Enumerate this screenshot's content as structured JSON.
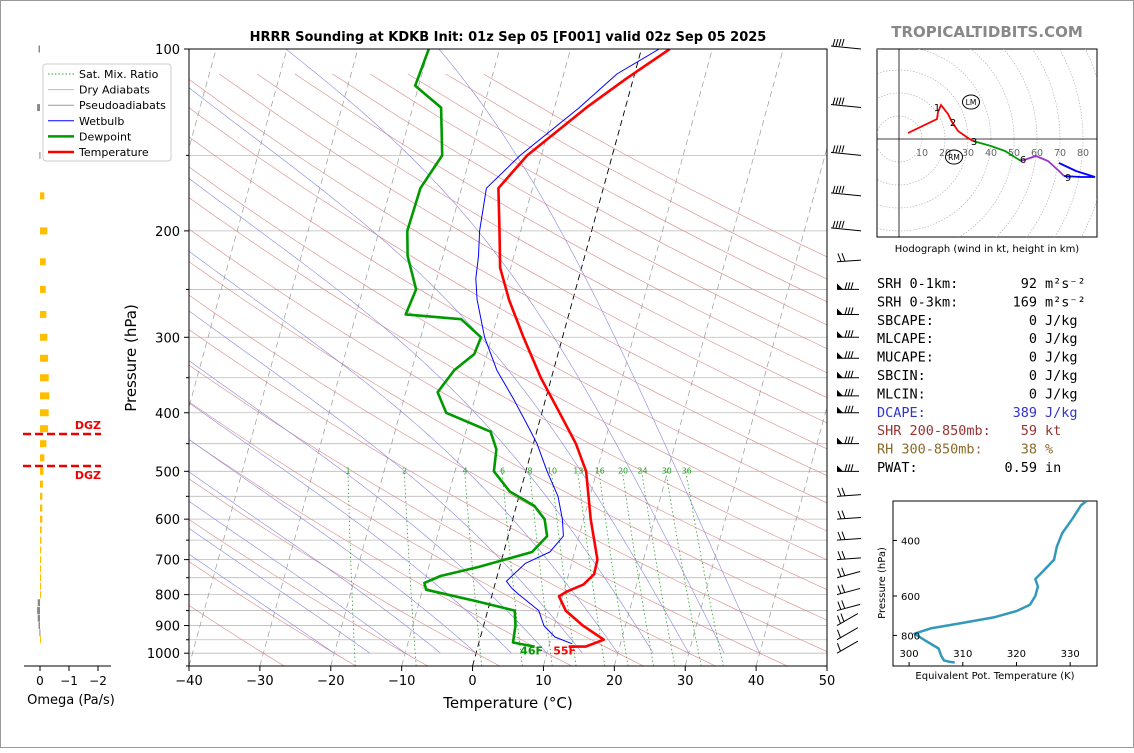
{
  "site": "TROPICALTIDBITS.COM",
  "chart_data": [
    {
      "type": "line",
      "id": "skewt",
      "title": "HRRR Sounding at KDKB Init: 01z Sep 05 [F001] valid 02z Sep 05 2025",
      "xlabel": "Temperature (°C)",
      "ylabel": "Pressure (hPa)",
      "xlim": [
        -40,
        50
      ],
      "ylim": [
        1050,
        100
      ],
      "y_scale": "log",
      "x_ticks": [
        -40,
        -30,
        -20,
        -10,
        0,
        10,
        20,
        30,
        40,
        50
      ],
      "y_ticks": [
        100,
        200,
        300,
        400,
        500,
        600,
        700,
        800,
        900,
        1000
      ],
      "legend": {
        "placement": "upper-left",
        "entries": [
          {
            "label": "Sat. Mix. Ratio",
            "color": "#2ca02c",
            "style": "dotted"
          },
          {
            "label": "Dry Adiabats",
            "color": "#bbbbbb",
            "style": "solid"
          },
          {
            "label": "Pseudoadiabats",
            "color": "#999999",
            "style": "solid"
          },
          {
            "label": "Wetbulb",
            "color": "#0000ff",
            "style": "solid"
          },
          {
            "label": "Dewpoint",
            "color": "#009900",
            "style": "solid"
          },
          {
            "label": "Temperature",
            "color": "#ff0000",
            "style": "solid"
          }
        ]
      },
      "mixing_ratio_labels": [
        "1",
        "2",
        "4",
        "6",
        "8",
        "10",
        "13",
        "16",
        "20",
        "24",
        "30",
        "36"
      ],
      "surface_labels": {
        "dewpoint": "46F",
        "temperature": "55F"
      },
      "series": [
        {
          "name": "Temperature",
          "color": "#ff0000",
          "points": [
            [
              12.8,
              975
            ],
            [
              15.2,
              975
            ],
            [
              17.5,
              950
            ],
            [
              14.0,
              900
            ],
            [
              11.0,
              850
            ],
            [
              9.5,
              805
            ],
            [
              10.5,
              790
            ],
            [
              12.5,
              770
            ],
            [
              13.6,
              740
            ],
            [
              13.5,
              700
            ],
            [
              12.3,
              650
            ],
            [
              11.0,
              600
            ],
            [
              9.8,
              550
            ],
            [
              8.5,
              500
            ],
            [
              6.0,
              450
            ],
            [
              2.5,
              400
            ],
            [
              -1.5,
              350
            ],
            [
              -5.5,
              300
            ],
            [
              -9.0,
              260
            ],
            [
              -11.5,
              230
            ],
            [
              -13.0,
              200
            ],
            [
              -14.8,
              170
            ],
            [
              -12.0,
              150
            ],
            [
              -5.5,
              125
            ],
            [
              -1.0,
              112
            ],
            [
              4.0,
              100
            ]
          ]
        },
        {
          "name": "Dewpoint",
          "color": "#009900",
          "points": [
            [
              8.0,
              975
            ],
            [
              4.8,
              960
            ],
            [
              4.5,
              900
            ],
            [
              3.8,
              850
            ],
            [
              -2.0,
              820
            ],
            [
              -9.5,
              785
            ],
            [
              -10.0,
              765
            ],
            [
              -8.0,
              745
            ],
            [
              -3.0,
              720
            ],
            [
              4.0,
              680
            ],
            [
              5.5,
              640
            ],
            [
              4.5,
              600
            ],
            [
              2.5,
              570
            ],
            [
              -1.5,
              540
            ],
            [
              -4.5,
              500
            ],
            [
              -5.0,
              460
            ],
            [
              -6.5,
              430
            ],
            [
              -13.5,
              400
            ],
            [
              -15.5,
              370
            ],
            [
              -14.0,
              340
            ],
            [
              -11.8,
              320
            ],
            [
              -11.5,
              300
            ],
            [
              -15.0,
              280
            ],
            [
              -23.0,
              275
            ],
            [
              -22.5,
              250
            ],
            [
              -25.0,
              220
            ],
            [
              -26.0,
              200
            ],
            [
              -25.8,
              170
            ],
            [
              -24.0,
              150
            ],
            [
              -26.0,
              125
            ],
            [
              -30.5,
              115
            ],
            [
              -30.0,
              100
            ]
          ]
        },
        {
          "name": "Wetbulb",
          "color": "#0000ff",
          "points": [
            [
              13.2,
              965
            ],
            [
              10.5,
              940
            ],
            [
              8.5,
              900
            ],
            [
              7.2,
              850
            ],
            [
              3.8,
              800
            ],
            [
              2.5,
              780
            ],
            [
              1.5,
              760
            ],
            [
              3.5,
              710
            ],
            [
              6.5,
              680
            ],
            [
              7.8,
              640
            ],
            [
              7.0,
              600
            ],
            [
              5.5,
              550
            ],
            [
              3.0,
              500
            ],
            [
              0.5,
              450
            ],
            [
              -1.5,
              420
            ],
            [
              -4.5,
              380
            ],
            [
              -8.0,
              340
            ],
            [
              -11.0,
              300
            ],
            [
              -13.5,
              260
            ],
            [
              -14.5,
              240
            ],
            [
              -15.0,
              220
            ],
            [
              -15.8,
              200
            ],
            [
              -16.5,
              170
            ],
            [
              -13.0,
              150
            ],
            [
              -6.5,
              125
            ],
            [
              -2.5,
              110
            ],
            [
              2.5,
              100
            ]
          ]
        }
      ],
      "wind_levels": [
        1000,
        950,
        900,
        850,
        800,
        750,
        700,
        650,
        600,
        550,
        500,
        450,
        400,
        375,
        350,
        325,
        300,
        275,
        250,
        225,
        200,
        175,
        150,
        125,
        100
      ],
      "dgz_label": "DGZ"
    },
    {
      "type": "bar",
      "id": "omega",
      "xlabel": "Omega (Pa/s)",
      "x_ticks": [
        0,
        -1,
        -2
      ],
      "levels_hpa": [
        100,
        125,
        150,
        175,
        200,
        225,
        250,
        275,
        300,
        325,
        350,
        375,
        400,
        425,
        450,
        475,
        500,
        525,
        550,
        575,
        600,
        625,
        650,
        675,
        700,
        725,
        750,
        775,
        800,
        825,
        850,
        875,
        900,
        925,
        950
      ],
      "values": [
        0.05,
        0.1,
        0.02,
        -0.15,
        -0.25,
        -0.2,
        -0.2,
        -0.22,
        -0.25,
        -0.28,
        -0.3,
        -0.32,
        -0.3,
        -0.28,
        -0.22,
        -0.15,
        -0.12,
        -0.1,
        -0.08,
        -0.08,
        -0.08,
        -0.06,
        -0.05,
        -0.04,
        -0.03,
        -0.02,
        -0.02,
        -0.02,
        -0.01,
        0.08,
        0.1,
        0.08,
        0.05,
        0.02,
        -0.01
      ],
      "dgz_label": "DGZ"
    },
    {
      "type": "line",
      "id": "hodograph",
      "xlabel": "Hodograph (wind in kt, height in km)",
      "ring_labels": [
        "10",
        "20",
        "30",
        "40",
        "50",
        "60",
        "70",
        "80"
      ],
      "height_labels": [
        "1",
        "2",
        "3",
        "6",
        "9"
      ],
      "markers": [
        "LM",
        "RM"
      ]
    },
    {
      "type": "line",
      "id": "theta_e",
      "xlabel": "Equivalent Pot. Temperature (K)",
      "ylabel": "Pressure (hPa)",
      "x_ticks": [
        300,
        310,
        320,
        330
      ],
      "y_ticks": [
        400,
        600,
        800
      ],
      "xlim": [
        297,
        335
      ],
      "ylim": [
        1000,
        300
      ],
      "series": [
        {
          "name": "",
          "color": "#3399bb",
          "values": [
            [
              308.5,
              975
            ],
            [
              307.5,
              970
            ],
            [
              306.5,
              960
            ],
            [
              306.0,
              930
            ],
            [
              305.5,
              880
            ],
            [
              303.0,
              830
            ],
            [
              301.0,
              790
            ],
            [
              304.0,
              760
            ],
            [
              310.0,
              730
            ],
            [
              316.0,
              700
            ],
            [
              320.0,
              670
            ],
            [
              322.5,
              640
            ],
            [
              323.5,
              600
            ],
            [
              324.0,
              560
            ],
            [
              323.5,
              530
            ],
            [
              325.0,
              500
            ],
            [
              327.0,
              460
            ],
            [
              327.5,
              420
            ],
            [
              328.5,
              380
            ],
            [
              330.5,
              340
            ],
            [
              332.0,
              310
            ],
            [
              333.0,
              300
            ]
          ]
        }
      ]
    }
  ],
  "indices": [
    {
      "label": "SRH 0-1km:",
      "value": "92",
      "unit": "m²s⁻²",
      "color": "#000000"
    },
    {
      "label": "SRH 0-3km:",
      "value": "169",
      "unit": "m²s⁻²",
      "color": "#000000"
    },
    {
      "label": "SBCAPE:",
      "value": "0",
      "unit": "J/kg",
      "color": "#000000"
    },
    {
      "label": "MLCAPE:",
      "value": "0",
      "unit": "J/kg",
      "color": "#000000"
    },
    {
      "label": "MUCAPE:",
      "value": "0",
      "unit": "J/kg",
      "color": "#000000"
    },
    {
      "label": "SBCIN:",
      "value": "0",
      "unit": "J/kg",
      "color": "#000000"
    },
    {
      "label": "MLCIN:",
      "value": "0",
      "unit": "J/kg",
      "color": "#000000"
    },
    {
      "label": "DCAPE:",
      "value": "389",
      "unit": "J/kg",
      "color": "#3333cc"
    },
    {
      "label": "SHR 200-850mb:",
      "value": "59",
      "unit": "kt",
      "color": "#993333"
    },
    {
      "label": "RH 300-850mb:",
      "value": "38",
      "unit": "%",
      "color": "#8a6a2a"
    },
    {
      "label": "PWAT:",
      "value": "0.59",
      "unit": "in",
      "color": "#000000"
    }
  ]
}
